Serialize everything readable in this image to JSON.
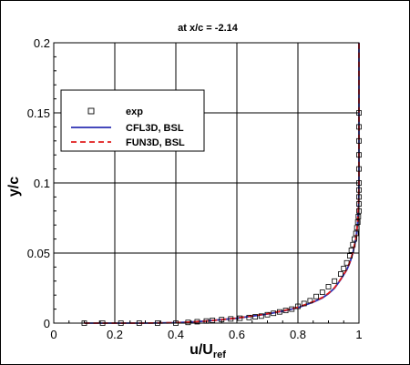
{
  "chart_data": {
    "type": "line",
    "title": "at x/c = -2.14",
    "xlabel": "u/U",
    "xlabel_sub": "ref",
    "ylabel": "y/c",
    "xlim": [
      0,
      1
    ],
    "ylim": [
      0,
      0.2
    ],
    "xticks": [
      0,
      0.2,
      0.4,
      0.6,
      0.8,
      1
    ],
    "xtick_labels": [
      "0",
      "0.2",
      "0.4",
      "0.6",
      "0.8",
      "1"
    ],
    "yticks": [
      0,
      0.05,
      0.1,
      0.15,
      0.2
    ],
    "ytick_labels": [
      "0",
      "0.05",
      "0.1",
      "0.15",
      "0.2"
    ],
    "grid": true,
    "legend_position": "upper-left",
    "legend": [
      {
        "label": "exp",
        "style": "square-marker",
        "color": "#000000"
      },
      {
        "label": "CFL3D, BSL",
        "style": "solid",
        "color": "#2b2fb3"
      },
      {
        "label": "FUN3D, BSL",
        "style": "dashed",
        "color": "#e01b1b"
      }
    ],
    "series": [
      {
        "name": "exp",
        "kind": "scatter",
        "color": "#000000",
        "x": [
          0.1,
          0.16,
          0.22,
          0.28,
          0.34,
          0.4,
          0.44,
          0.47,
          0.5,
          0.52,
          0.55,
          0.58,
          0.61,
          0.64,
          0.66,
          0.68,
          0.7,
          0.72,
          0.74,
          0.76,
          0.78,
          0.8,
          0.82,
          0.84,
          0.86,
          0.88,
          0.9,
          0.92,
          0.94,
          0.95,
          0.96,
          0.97,
          0.975,
          0.98,
          0.985,
          0.99,
          0.993,
          0.996,
          0.998,
          1.0,
          1.0,
          1.0,
          1.0,
          1.0,
          1.0,
          1.0,
          1.0,
          1.0,
          1.0
        ],
        "y": [
          0.0,
          0.0,
          0.0,
          0.0,
          0.0,
          0.0,
          0.0005,
          0.001,
          0.0015,
          0.002,
          0.0025,
          0.003,
          0.0035,
          0.004,
          0.0045,
          0.005,
          0.006,
          0.007,
          0.008,
          0.009,
          0.01,
          0.012,
          0.014,
          0.016,
          0.019,
          0.022,
          0.026,
          0.03,
          0.035,
          0.039,
          0.043,
          0.048,
          0.052,
          0.056,
          0.06,
          0.064,
          0.068,
          0.072,
          0.076,
          0.08,
          0.085,
          0.09,
          0.095,
          0.1,
          0.11,
          0.12,
          0.13,
          0.14,
          0.15
        ]
      },
      {
        "name": "CFL3D, BSL",
        "kind": "line",
        "color": "#2b2fb3",
        "x": [
          0.1,
          0.3,
          0.4,
          0.45,
          0.5,
          0.55,
          0.6,
          0.65,
          0.7,
          0.75,
          0.8,
          0.85,
          0.88,
          0.9,
          0.92,
          0.94,
          0.96,
          0.97,
          0.98,
          0.99,
          0.995,
          0.999,
          1.0,
          1.0
        ],
        "y": [
          0.0,
          0.0,
          0.0003,
          0.0008,
          0.0015,
          0.0025,
          0.0035,
          0.005,
          0.0065,
          0.0085,
          0.011,
          0.015,
          0.018,
          0.021,
          0.025,
          0.031,
          0.038,
          0.043,
          0.05,
          0.06,
          0.07,
          0.085,
          0.1,
          0.2
        ]
      },
      {
        "name": "FUN3D, BSL",
        "kind": "line",
        "color": "#e01b1b",
        "x": [
          0.1,
          0.3,
          0.4,
          0.45,
          0.5,
          0.55,
          0.6,
          0.65,
          0.7,
          0.75,
          0.8,
          0.85,
          0.88,
          0.9,
          0.92,
          0.94,
          0.96,
          0.97,
          0.98,
          0.99,
          0.995,
          0.999,
          1.0,
          1.0
        ],
        "y": [
          0.0,
          0.0,
          0.0003,
          0.0008,
          0.0015,
          0.0025,
          0.0036,
          0.0051,
          0.0067,
          0.0087,
          0.0113,
          0.0153,
          0.0183,
          0.0213,
          0.0253,
          0.0313,
          0.0383,
          0.0435,
          0.0505,
          0.0605,
          0.0705,
          0.0855,
          0.1,
          0.2
        ]
      }
    ]
  }
}
